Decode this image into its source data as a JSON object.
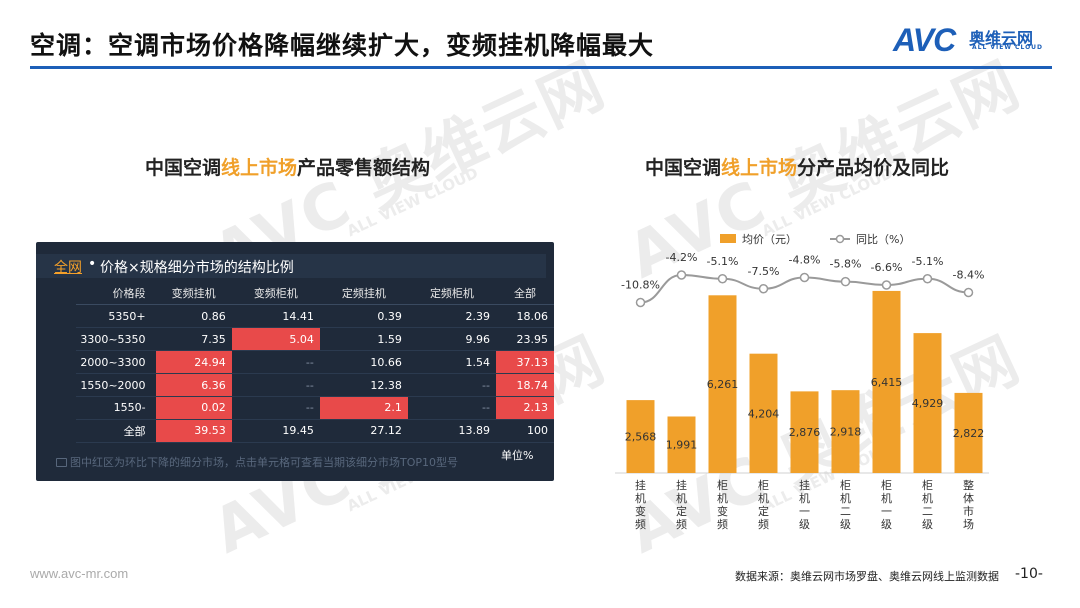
{
  "slide": {
    "title": "空调：空调市场价格降幅继续扩大，变频挂机降幅最大",
    "logo_text": "AVC",
    "logo_cn": "奥维云网",
    "logo_en": "ALL VIEW CLOUD",
    "footer_url": "www.avc-mr.com",
    "source": "数据来源：奥维云网市场罗盘、奥维云网线上监测数据",
    "page_number": "-10-",
    "accent_color": "#1d5fb8",
    "highlight_color": "#f0a02a"
  },
  "left_panel": {
    "title_pre": "中国空调",
    "title_hl": "线上市场",
    "title_post": "产品零售额结构",
    "header_link": "全网",
    "header_dot": "•",
    "header_text": "价格×规格细分市场的结构比例",
    "note": "图中红区为环比下降的细分市场，点击单元格可查看当期该细分市场TOP10型号",
    "unit": "单位%",
    "columns": [
      "价格段",
      "变频挂机",
      "变频柜机",
      "定频挂机",
      "定频柜机",
      "全部"
    ],
    "rows": [
      {
        "cells": [
          "5350+",
          "0.86",
          "14.41",
          "0.39",
          "2.39",
          "18.06"
        ],
        "red": [
          false,
          false,
          false,
          false,
          false,
          false
        ]
      },
      {
        "cells": [
          "3300~5350",
          "7.35",
          "5.04",
          "1.59",
          "9.96",
          "23.95"
        ],
        "red": [
          false,
          false,
          true,
          false,
          false,
          false
        ]
      },
      {
        "cells": [
          "2000~3300",
          "24.94",
          "--",
          "10.66",
          "1.54",
          "37.13"
        ],
        "red": [
          false,
          true,
          false,
          false,
          false,
          true
        ]
      },
      {
        "cells": [
          "1550~2000",
          "6.36",
          "--",
          "12.38",
          "--",
          "18.74"
        ],
        "red": [
          false,
          true,
          false,
          false,
          false,
          true
        ]
      },
      {
        "cells": [
          "1550-",
          "0.02",
          "--",
          "2.1",
          "--",
          "2.13"
        ],
        "red": [
          false,
          true,
          false,
          true,
          false,
          true
        ]
      },
      {
        "cells": [
          "全部",
          "39.53",
          "19.45",
          "27.12",
          "13.89",
          "100"
        ],
        "red": [
          false,
          true,
          false,
          false,
          false,
          false
        ]
      }
    ]
  },
  "right_panel": {
    "title_pre": "中国空调",
    "title_hl": "线上市场",
    "title_post": "分产品均价及同比"
  },
  "chart_data": {
    "type": "bar",
    "categories": [
      "挂机变频",
      "挂机定频",
      "柜机变频",
      "柜机定频",
      "挂机一级",
      "柜机二级",
      "柜机一级",
      "柜机二级",
      "整体市场"
    ],
    "series": [
      {
        "name": "均价（元）",
        "type": "bar",
        "color": "#f0a02a",
        "values": [
          2568,
          1991,
          6261,
          4204,
          2876,
          2918,
          6415,
          4929,
          2822
        ]
      },
      {
        "name": "同比（%）",
        "type": "line",
        "color": "#9a9a9a",
        "values": [
          -10.8,
          -4.2,
          -5.1,
          -7.5,
          -4.8,
          -5.8,
          -6.6,
          -5.1,
          -8.4
        ]
      }
    ],
    "bar_labels": [
      "2,568",
      "1,991",
      "6,261",
      "4,204",
      "2,876",
      "2,918",
      "6,415",
      "4,929",
      "2,822"
    ],
    "line_labels": [
      "-10.8%",
      "-4.2%",
      "-5.1%",
      "-7.5%",
      "-4.8%",
      "-5.8%",
      "-6.6%",
      "-5.1%",
      "-8.4%"
    ],
    "bar_ylim": [
      0,
      6800
    ],
    "line_ylim": [
      -15,
      -3
    ],
    "legend_position": "top-center",
    "grid": false
  }
}
